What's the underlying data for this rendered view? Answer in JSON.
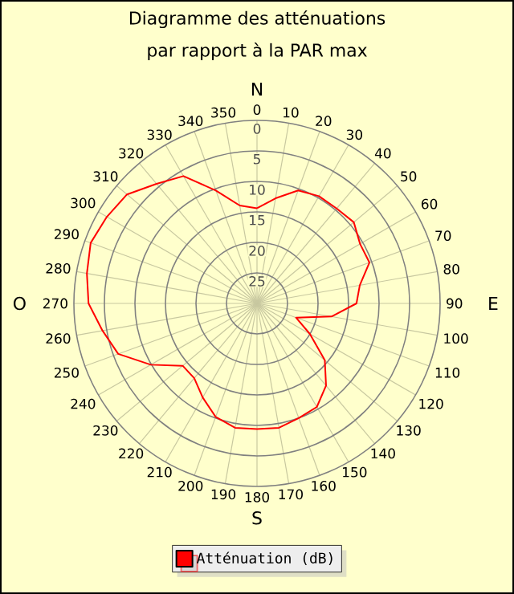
{
  "chart_data": {
    "type": "radar",
    "title": "Diagramme des atténuations",
    "subtitle": "par rapport à la PAR max",
    "categories": [
      "0",
      "10",
      "20",
      "30",
      "40",
      "50",
      "60",
      "70",
      "80",
      "90",
      "100",
      "110",
      "120",
      "130",
      "140",
      "150",
      "160",
      "170",
      "180",
      "190",
      "200",
      "210",
      "220",
      "230",
      "240",
      "250",
      "260",
      "270",
      "280",
      "290",
      "300",
      "310",
      "320",
      "330",
      "340",
      "350"
    ],
    "series": [
      {
        "name": "Atténuation (dB)",
        "color": "#ff0000",
        "values": [
          14.4,
          12.5,
          10.3,
          9.7,
          9.7,
          9.3,
          10.5,
          10.4,
          12.9,
          13.7,
          17.6,
          23.2,
          20,
          15.5,
          12.4,
          10.4,
          10,
          9.3,
          9.4,
          9.3,
          10.2,
          12.2,
          14,
          14.1,
          9.9,
          5.8,
          4.3,
          2.4,
          1.7,
          1,
          1.6,
          2.2,
          4.4,
          5.9,
          10.3,
          13.7
        ]
      }
    ],
    "ylim": [
      30,
      0
    ],
    "yticks": [
      0,
      5,
      10,
      15,
      20,
      25
    ],
    "grid": true,
    "legend": "bottom",
    "annotations": [
      "N",
      "E",
      "S",
      "O"
    ]
  }
}
